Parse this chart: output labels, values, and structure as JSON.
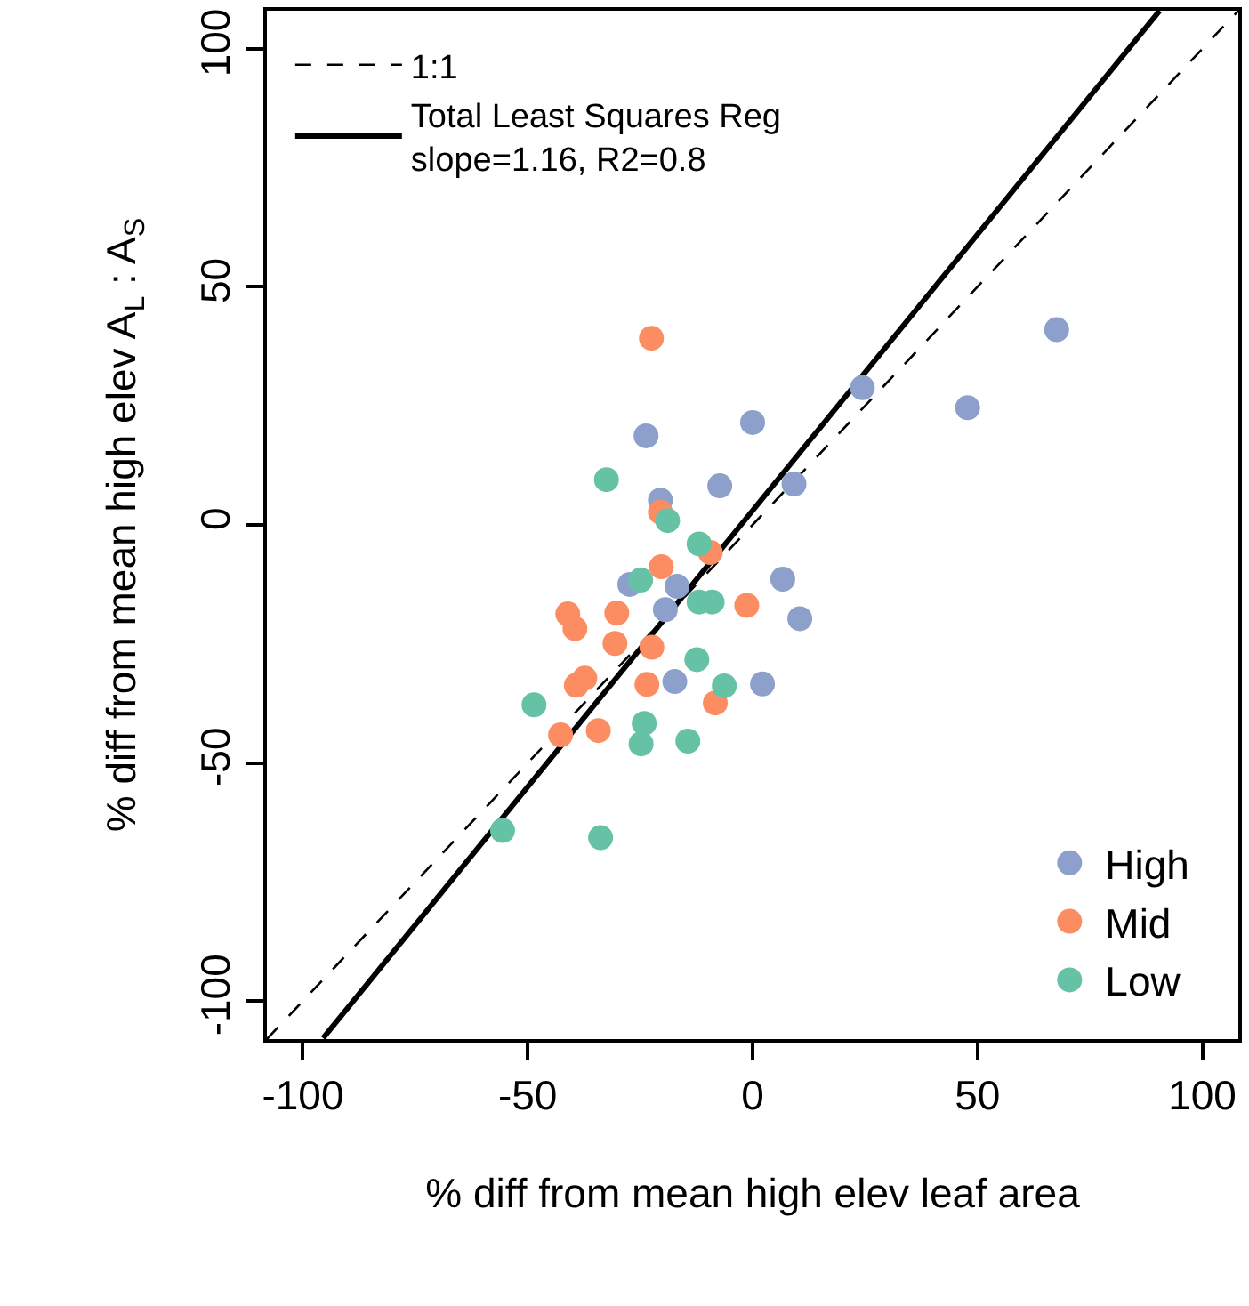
{
  "chart_data": {
    "type": "scatter",
    "xlabel": "% diff from mean high elev leaf area",
    "ylabel": "% diff from mean high elev A$_{L}$ : A$_{S}$",
    "xlim": [
      -108,
      108
    ],
    "ylim": [
      -108,
      108
    ],
    "xticks": [
      -100,
      -50,
      0,
      50,
      100
    ],
    "yticks": [
      -100,
      -50,
      0,
      50,
      100
    ],
    "marker": "circle",
    "legend": [
      "top left",
      "bottom right"
    ],
    "series": [
      {
        "name": "1:1",
        "type": "line",
        "line_style": "dashed",
        "marker": "none",
        "color": "#000000",
        "x": [
          -108,
          108
        ],
        "values": [
          -108,
          108
        ]
      },
      {
        "name": "Total Least Squares Reg\nslope=1.16, R2=0.8",
        "type": "line",
        "line_style": "solid",
        "marker": "none",
        "color": "#000000",
        "x": [
          -95.5,
          90.5
        ],
        "values": [
          -107.8,
          108.0
        ]
      },
      {
        "name": "High",
        "color": "#8da0cb",
        "x": [
          67.6,
          47.8,
          24.4,
          0,
          -23.7,
          9.2,
          -7.3,
          -20.5,
          6.7,
          10.5,
          -27.3,
          -16.8,
          -19.4,
          -17.3,
          2.2
        ],
        "values": [
          41.0,
          24.6,
          28.8,
          21.5,
          18.7,
          8.6,
          8.2,
          5.2,
          -11.4,
          -19.7,
          -12.5,
          -12.9,
          -17.8,
          -32.9,
          -33.4
        ]
      },
      {
        "name": "Mid",
        "color": "#fc8d62",
        "x": [
          -22.5,
          -20.5,
          -9.4,
          -20.3,
          -1.3,
          -41.1,
          -39.5,
          -30.2,
          -30.6,
          -22.4,
          -37.3,
          -39.2,
          -23.5,
          -8.3,
          -42.7,
          -34.3
        ],
        "values": [
          39.2,
          2.7,
          -5.8,
          -8.8,
          -16.9,
          -18.7,
          -21.8,
          -18.5,
          -24.9,
          -25.7,
          -32.2,
          -33.7,
          -33.5,
          -37.4,
          -44.1,
          -43.2
        ]
      },
      {
        "name": "Low",
        "color": "#66c2a5",
        "x": [
          -32.5,
          -18.9,
          -11.9,
          -24.9,
          -11.9,
          -9.0,
          -12.4,
          -6.3,
          -48.6,
          -24.1,
          -24.8,
          -14.4,
          -55.6,
          -33.8
        ],
        "values": [
          9.5,
          0.9,
          -4.0,
          -11.6,
          -16.2,
          -16.2,
          -28.3,
          -33.8,
          -37.8,
          -41.7,
          -46.0,
          -45.4,
          -64.2,
          -65.7
        ]
      }
    ]
  }
}
